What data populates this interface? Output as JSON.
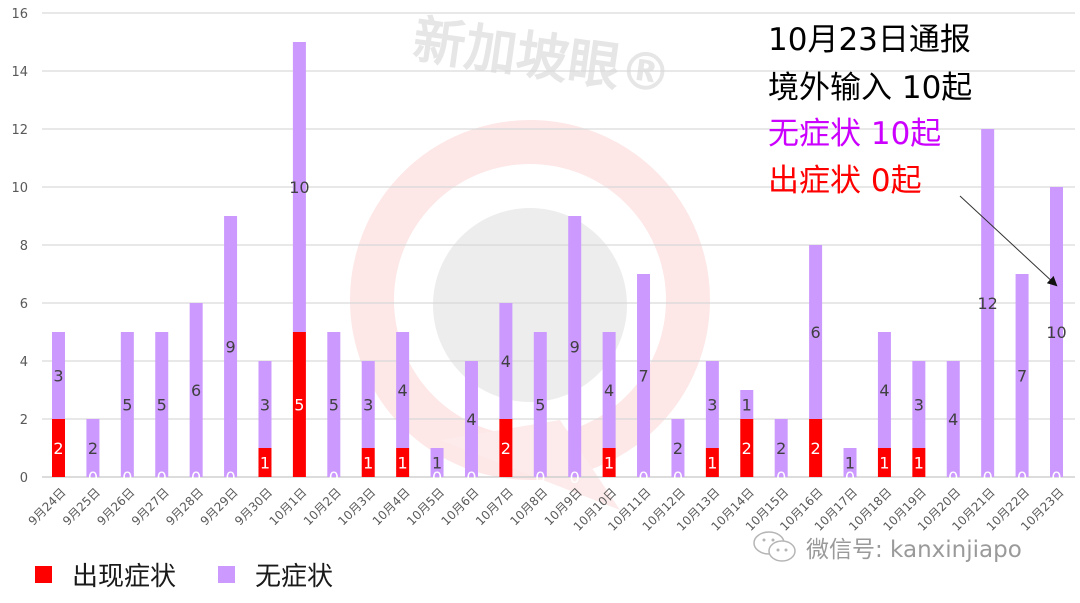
{
  "chart_data": {
    "type": "bar",
    "stacked": true,
    "title": "",
    "xlabel": "",
    "ylabel": "",
    "ylim": [
      0,
      16
    ],
    "yticks": [
      0,
      2,
      4,
      6,
      8,
      10,
      12,
      14,
      16
    ],
    "grid": true,
    "legend_position": "bottom-left",
    "categories": [
      "9月24日",
      "9月25日",
      "9月26日",
      "9月27日",
      "9月28日",
      "9月29日",
      "9月30日",
      "10月1日",
      "10月2日",
      "10月3日",
      "10月4日",
      "10月5日",
      "10月6日",
      "10月7日",
      "10月8日",
      "10月9日",
      "10月10日",
      "10月11日",
      "10月12日",
      "10月13日",
      "10月14日",
      "10月15日",
      "10月16日",
      "10月17日",
      "10月18日",
      "10月19日",
      "10月20日",
      "10月21日",
      "10月22日",
      "10月23日"
    ],
    "series": [
      {
        "name": "出现症状",
        "color": "#FF0000",
        "values": [
          2,
          0,
          0,
          0,
          0,
          0,
          1,
          5,
          0,
          1,
          1,
          0,
          0,
          2,
          0,
          0,
          1,
          0,
          0,
          1,
          2,
          0,
          2,
          0,
          1,
          1,
          0,
          0,
          0,
          0
        ]
      },
      {
        "name": "无症状",
        "color": "#CC99FF",
        "values": [
          3,
          2,
          5,
          5,
          6,
          9,
          3,
          10,
          5,
          3,
          4,
          1,
          4,
          4,
          5,
          9,
          4,
          7,
          2,
          3,
          1,
          2,
          6,
          1,
          4,
          3,
          4,
          12,
          7,
          10
        ]
      }
    ],
    "annotations": [
      {
        "text": "10月23日通报",
        "color": "#000000"
      },
      {
        "text": "境外输入 10起",
        "color": "#000000"
      },
      {
        "text": "无症状 10起",
        "color": "#CC00FF"
      },
      {
        "text": "出症状 0起",
        "color": "#FF0000"
      }
    ]
  },
  "annotation": {
    "line1": "10月23日通报",
    "line2": "境外输入 10起",
    "line3": "无症状 10起",
    "line4": "出症状 0起"
  },
  "legend": {
    "symptomatic": "出现症状",
    "asymptomatic": "无症状"
  },
  "watermark": {
    "brand": "新加坡眼®",
    "wechat": "微信号: kanxinjiapo"
  },
  "colors": {
    "symptomatic": "#FF0000",
    "asymptomatic": "#CC99FF",
    "annotation_purple": "#CC00FF",
    "annotation_red": "#FF0000",
    "grid": "#D9D9D9"
  }
}
